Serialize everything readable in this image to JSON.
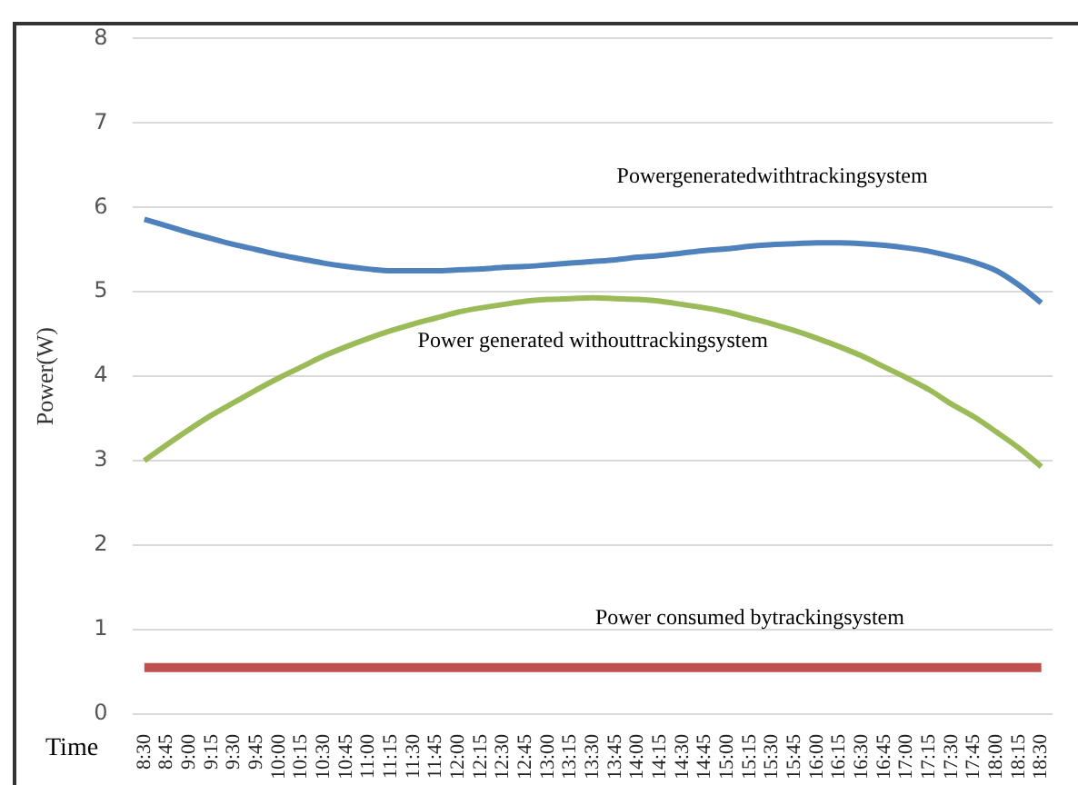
{
  "chart_data": {
    "type": "line",
    "xlabel": "Time",
    "ylabel": "Power(W)",
    "categories": [
      "8:30",
      "8:45",
      "9:00",
      "9:15",
      "9:30",
      "9:45",
      "10:00",
      "10:15",
      "10:30",
      "10:45",
      "11:00",
      "11:15",
      "11:30",
      "11:45",
      "12:00",
      "12:15",
      "12:30",
      "12:45",
      "13:00",
      "13:15",
      "13:30",
      "13:45",
      "14:00",
      "14:15",
      "14:30",
      "14:45",
      "15:00",
      "15:15",
      "15:30",
      "15:45",
      "16:00",
      "16:15",
      "16:30",
      "16:45",
      "17:00",
      "17:15",
      "17:30",
      "17:45",
      "18:00",
      "18:15",
      "18:30"
    ],
    "series": [
      {
        "name": "Powergeneratedwithtrackingsystem",
        "color": "#4f81bd",
        "values": [
          5.86,
          5.78,
          5.7,
          5.63,
          5.56,
          5.5,
          5.44,
          5.39,
          5.34,
          5.3,
          5.27,
          5.25,
          5.25,
          5.25,
          5.26,
          5.27,
          5.29,
          5.3,
          5.32,
          5.34,
          5.36,
          5.38,
          5.41,
          5.43,
          5.46,
          5.49,
          5.51,
          5.54,
          5.56,
          5.57,
          5.58,
          5.58,
          5.57,
          5.55,
          5.52,
          5.48,
          5.42,
          5.35,
          5.25,
          5.08,
          4.87
        ]
      },
      {
        "name": "Power generated withouttrackingsystem",
        "color": "#9bbb59",
        "values": [
          3.0,
          3.19,
          3.37,
          3.54,
          3.69,
          3.84,
          3.98,
          4.11,
          4.24,
          4.35,
          4.45,
          4.54,
          4.62,
          4.69,
          4.76,
          4.81,
          4.85,
          4.89,
          4.91,
          4.92,
          4.93,
          4.92,
          4.91,
          4.89,
          4.85,
          4.81,
          4.76,
          4.69,
          4.62,
          4.54,
          4.45,
          4.35,
          4.24,
          4.11,
          3.98,
          3.84,
          3.67,
          3.52,
          3.34,
          3.15,
          2.93
        ]
      },
      {
        "name": "Power consumed bytrackingsystem",
        "color": "#c0504d",
        "values": [
          0.55,
          0.55,
          0.55,
          0.55,
          0.55,
          0.55,
          0.55,
          0.55,
          0.55,
          0.55,
          0.55,
          0.55,
          0.55,
          0.55,
          0.55,
          0.55,
          0.55,
          0.55,
          0.55,
          0.55,
          0.55,
          0.55,
          0.55,
          0.55,
          0.55,
          0.55,
          0.55,
          0.55,
          0.55,
          0.55,
          0.55,
          0.55,
          0.55,
          0.55,
          0.55,
          0.55,
          0.55,
          0.55,
          0.55,
          0.55,
          0.55
        ]
      }
    ],
    "ylim": [
      0,
      8
    ],
    "yticks": [
      0,
      1,
      2,
      3,
      4,
      5,
      6,
      7,
      8
    ],
    "grid": "y",
    "legend": false,
    "marker": "none",
    "line_style": "solid"
  }
}
